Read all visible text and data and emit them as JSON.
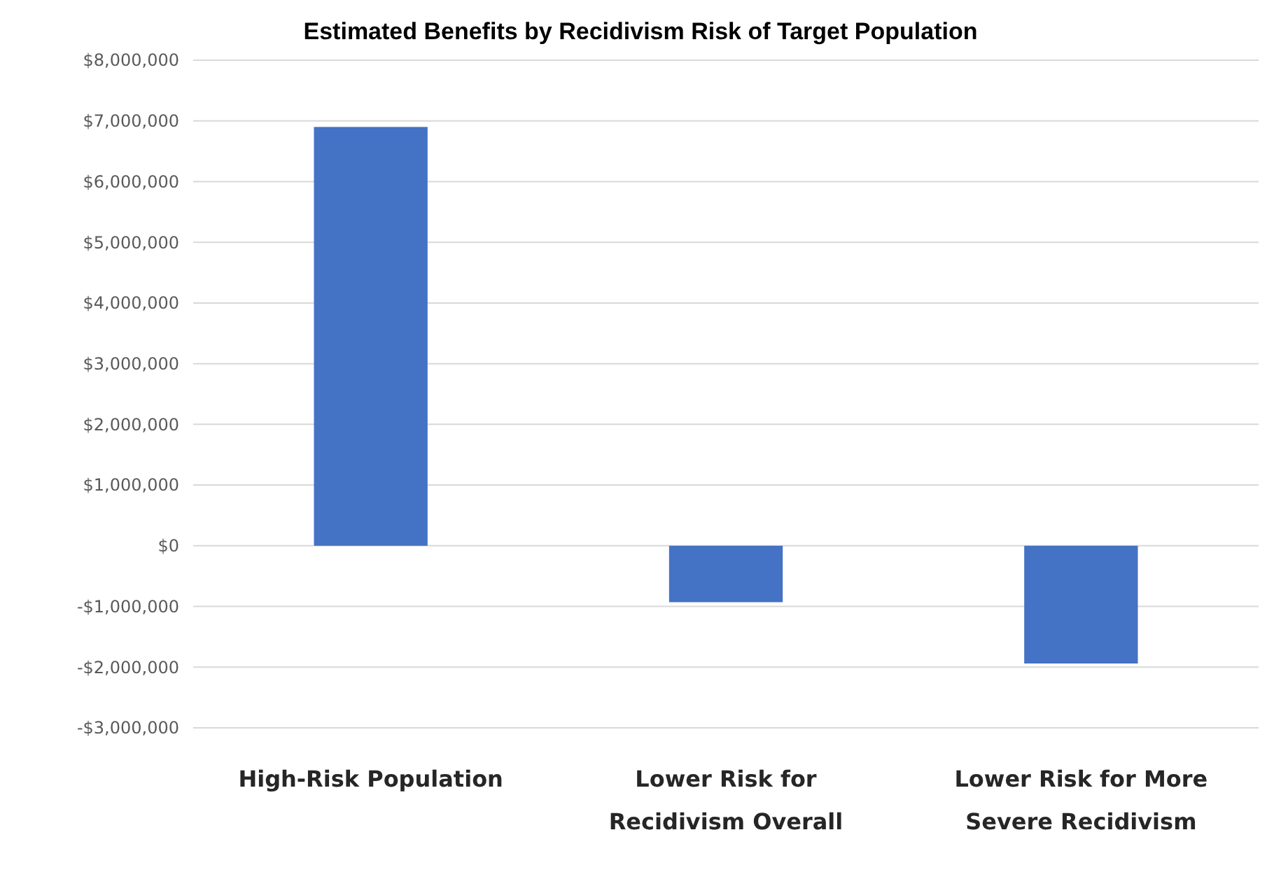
{
  "chart_data": {
    "type": "bar",
    "title": "Estimated Benefits by Recidivism Risk of Target Population",
    "categories": [
      "High-Risk Population",
      "Lower Risk for Recidivism Overall",
      "Lower Risk for More Severe Recidivism"
    ],
    "values": [
      6900000,
      -930000,
      -1940000
    ],
    "color": "#4472c4",
    "ylim": [
      -3000000,
      8000000
    ],
    "yticks": [
      {
        "value": -3000000,
        "label": "-$3,000,000"
      },
      {
        "value": -2000000,
        "label": "-$2,000,000"
      },
      {
        "value": -1000000,
        "label": "-$1,000,000"
      },
      {
        "value": 0,
        "label": "$0"
      },
      {
        "value": 1000000,
        "label": "$1,000,000"
      },
      {
        "value": 2000000,
        "label": "$2,000,000"
      },
      {
        "value": 3000000,
        "label": "$3,000,000"
      },
      {
        "value": 4000000,
        "label": "$4,000,000"
      },
      {
        "value": 5000000,
        "label": "$5,000,000"
      },
      {
        "value": 6000000,
        "label": "$6,000,000"
      },
      {
        "value": 7000000,
        "label": "$7,000,000"
      },
      {
        "value": 8000000,
        "label": "$8,000,000"
      }
    ],
    "grid": true
  }
}
